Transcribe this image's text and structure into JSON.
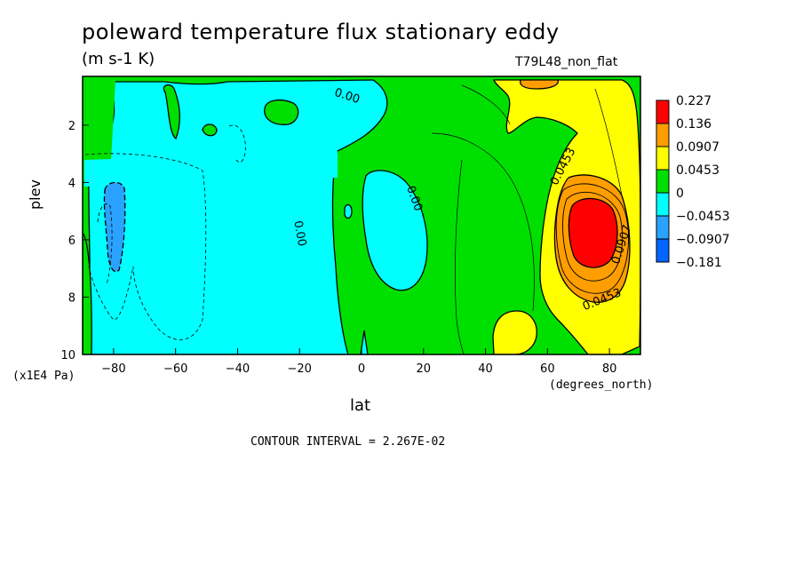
{
  "header": {
    "title": "poleward temperature flux stationary eddy",
    "units": "(m s-1 K)",
    "run": "T79L48_non_flat"
  },
  "footer": {
    "contour_interval": "CONTOUR INTERVAL = 2.267E-02"
  },
  "colors": {
    "red": "#ff0000",
    "orange": "#ff9e00",
    "yellow": "#ffff00",
    "green": "#00e000",
    "cyan": "#00ffff",
    "lightblue": "#2aa2ff",
    "blue": "#0064ff"
  },
  "chart_data": {
    "type": "heatmap",
    "title": "poleward temperature flux stationary eddy",
    "subtitle": "(m s-1 K)",
    "xlabel": "lat",
    "xunit": "(degrees_north)",
    "ylabel": "plev",
    "yunit": "(x1E4 Pa)",
    "xlim": [
      -90,
      90
    ],
    "ylim": [
      10,
      0.3
    ],
    "x_ticks": [
      -80,
      -60,
      -40,
      -20,
      0,
      20,
      40,
      60,
      80
    ],
    "y_ticks": [
      2,
      4,
      6,
      8,
      10
    ],
    "legend": {
      "placement": "right",
      "levels": [
        "0.227",
        "0.136",
        "0.0907",
        "0.0453",
        "0",
        "−0.0453",
        "−0.0907",
        "−0.181"
      ],
      "colors": [
        "#ff0000",
        "#ff9e00",
        "#ffff00",
        "#00e000",
        "#00ffff",
        "#2aa2ff",
        "#0064ff"
      ]
    },
    "contour_labels": [
      {
        "text": "0.00",
        "lat": -5,
        "plev": 1.1
      },
      {
        "text": "0.00",
        "lat": 16,
        "plev": 4.6
      },
      {
        "text": "0.00",
        "lat": -21,
        "plev": 5.8
      },
      {
        "text": "0.0453",
        "lat": 66,
        "plev": 3.5
      },
      {
        "text": "0.0907",
        "lat": 85,
        "plev": 6.2
      },
      {
        "text": "0.0453",
        "lat": 78,
        "plev": 8.2
      }
    ],
    "contour_interval": 0.02267
  }
}
